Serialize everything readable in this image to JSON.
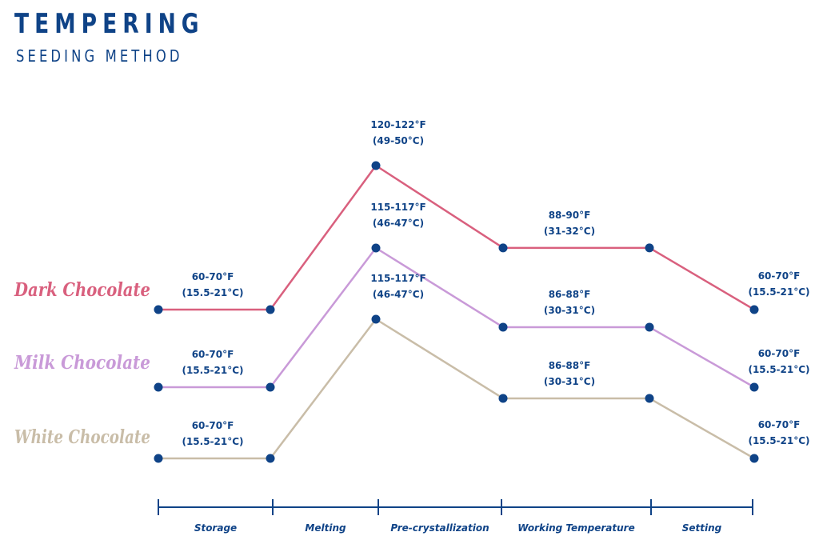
{
  "header": {
    "title": "TEMPERING",
    "subtitle": "SEEDING METHOD"
  },
  "chart_data": {
    "type": "line",
    "title": "TEMPERING",
    "subtitle": "SEEDING METHOD",
    "colors": {
      "axis": "#0f4387",
      "point": "#0f4387"
    },
    "stages": [
      "Storage",
      "Melting",
      "Pre-crystallization",
      "Working Temperature",
      "Setting"
    ],
    "series": [
      {
        "name": "Dark Chocolate",
        "color": "#d9607e",
        "points_f": [
          65,
          65,
          121,
          89,
          89,
          65
        ],
        "labels": [
          {
            "f": "60-70°F",
            "c": "(15.5-21°C)"
          },
          {
            "f": "120-122°F",
            "c": "(49-50°C)"
          },
          {
            "f": "88-90°F",
            "c": "(31-32°C)"
          },
          {
            "f": "60-70°F",
            "c": "(15.5-21°C)"
          }
        ]
      },
      {
        "name": "Milk Chocolate",
        "color": "#c99ad8",
        "points_f": [
          65,
          65,
          116,
          87,
          87,
          65
        ],
        "labels": [
          {
            "f": "60-70°F",
            "c": "(15.5-21°C)"
          },
          {
            "f": "115-117°F",
            "c": "(46-47°C)"
          },
          {
            "f": "86-88°F",
            "c": "(30-31°C)"
          },
          {
            "f": "60-70°F",
            "c": "(15.5-21°C)"
          }
        ]
      },
      {
        "name": "White Chocolate",
        "color": "#c9bda8",
        "points_f": [
          65,
          65,
          116,
          87,
          87,
          65
        ],
        "labels": [
          {
            "f": "60-70°F",
            "c": "(15.5-21°C)"
          },
          {
            "f": "115-117°F",
            "c": "(46-47°C)"
          },
          {
            "f": "86-88°F",
            "c": "(30-31°C)"
          },
          {
            "f": "60-70°F",
            "c": "(15.5-21°C)"
          }
        ]
      }
    ]
  }
}
